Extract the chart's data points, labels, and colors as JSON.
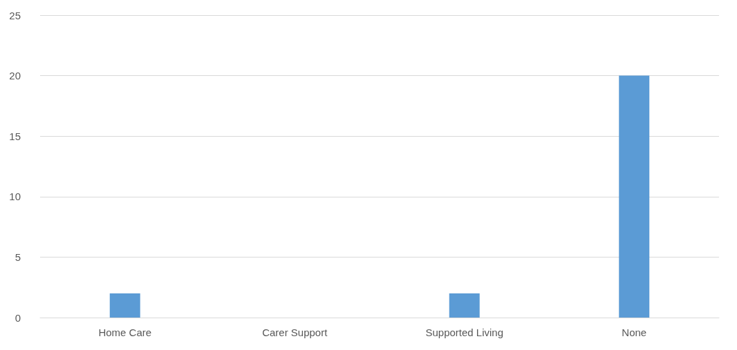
{
  "chart_data": {
    "type": "bar",
    "categories": [
      "Home Care",
      "Carer Support",
      "Supported Living",
      "None"
    ],
    "values": [
      2,
      0,
      2,
      20
    ],
    "color": "#5b9bd5",
    "ylim": [
      0,
      25
    ],
    "yticks": [
      0,
      5,
      10,
      15,
      20,
      25
    ],
    "grid": "y"
  }
}
